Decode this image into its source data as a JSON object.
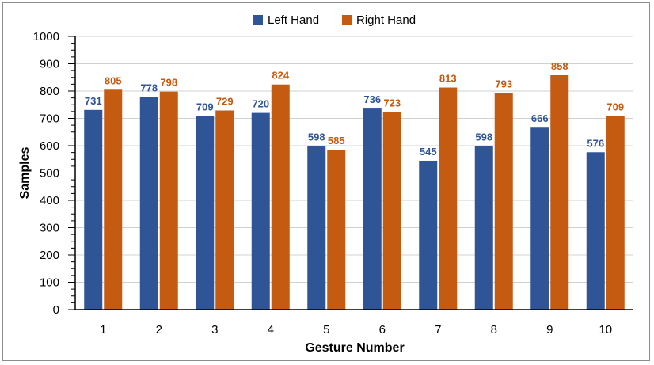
{
  "chart_data": {
    "type": "bar",
    "categories": [
      "1",
      "2",
      "3",
      "4",
      "5",
      "6",
      "7",
      "8",
      "9",
      "10"
    ],
    "series": [
      {
        "name": "Left Hand",
        "color": "#2f5597",
        "label_color": "#2f5597",
        "values": [
          731,
          778,
          709,
          720,
          598,
          736,
          545,
          598,
          666,
          576
        ]
      },
      {
        "name": "Right Hand",
        "color": "#c55a11",
        "label_color": "#c55a11",
        "values": [
          805,
          798,
          729,
          824,
          585,
          723,
          813,
          793,
          858,
          709
        ]
      }
    ],
    "title": "",
    "xlabel": "Gesture Number",
    "ylabel": "Samples",
    "ylim": [
      0,
      1000
    ],
    "yticks": [
      "0",
      "100",
      "200",
      "300",
      "400",
      "500",
      "600",
      "700",
      "800",
      "900",
      "1000"
    ],
    "grid": true,
    "legend_position": "top-center",
    "data_labels": true
  }
}
